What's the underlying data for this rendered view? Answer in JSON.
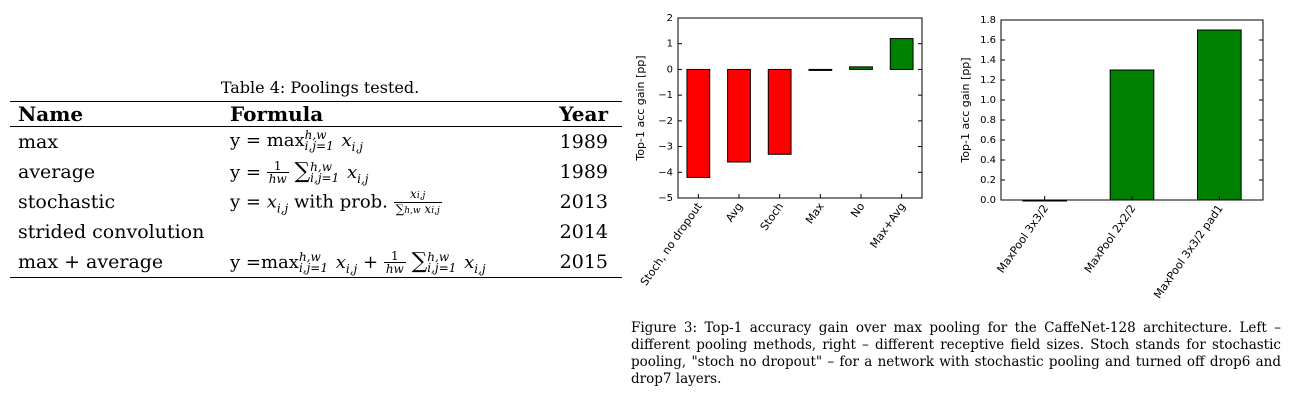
{
  "table": {
    "caption": "Table 4: Poolings tested.",
    "headers": {
      "name": "Name",
      "formula": "Formula",
      "year": "Year"
    },
    "rows": [
      {
        "name": "max",
        "year": "1989"
      },
      {
        "name": "average",
        "year": "1989"
      },
      {
        "name": "stochastic",
        "year": "2013"
      },
      {
        "name": "strided convolution",
        "year": "2014"
      },
      {
        "name": "max + average",
        "year": "2015"
      }
    ],
    "formula_parts": {
      "y_eq": "y =",
      "max": "max",
      "hw_sup": "h,w",
      "ij_sub": "i,j=1",
      "x_ij": "x",
      "ij": "i,j",
      "one": "1",
      "hw_den": "hw",
      "with_prob": "with prob.",
      "plus": "+"
    }
  },
  "chart_data": [
    {
      "type": "bar",
      "ylabel": "Top-1 acc gain [pp]",
      "ylim": [
        -5,
        2
      ],
      "yticks": [
        -5,
        -4,
        -3,
        -2,
        -1,
        0,
        1,
        2
      ],
      "categories": [
        "Stoch, no dropout",
        "Avg",
        "Stoch",
        "Max",
        "No",
        "Max+Avg"
      ],
      "values": [
        -4.2,
        -3.6,
        -3.3,
        0.0,
        0.1,
        1.2
      ],
      "colors": [
        "#ff0000",
        "#ff0000",
        "#ff0000",
        "#008000",
        "#008000",
        "#008000"
      ],
      "grid": false
    },
    {
      "type": "bar",
      "ylabel": "Top-1 acc gain [pp]",
      "ylim": [
        0,
        1.8
      ],
      "yticks": [
        0.0,
        0.2,
        0.4,
        0.6,
        0.8,
        1.0,
        1.2,
        1.4,
        1.6,
        1.8
      ],
      "categories": [
        "MaxPool 3x3/2",
        "MaxPool 2x2/2",
        "MaxPool 3x3/2 pad1"
      ],
      "values": [
        0.0,
        1.3,
        1.7
      ],
      "colors": [
        "#008000",
        "#008000",
        "#008000"
      ],
      "grid": false
    }
  ],
  "figure_caption": "Figure 3: Top-1 accuracy gain over max pooling for the CaffeNet-128 architecture. Left – different pooling methods, right – different receptive field sizes. Stoch stands for stochastic pooling, \"stoch no dropout\" – for a network with stochastic pooling and turned off drop6 and drop7 layers."
}
